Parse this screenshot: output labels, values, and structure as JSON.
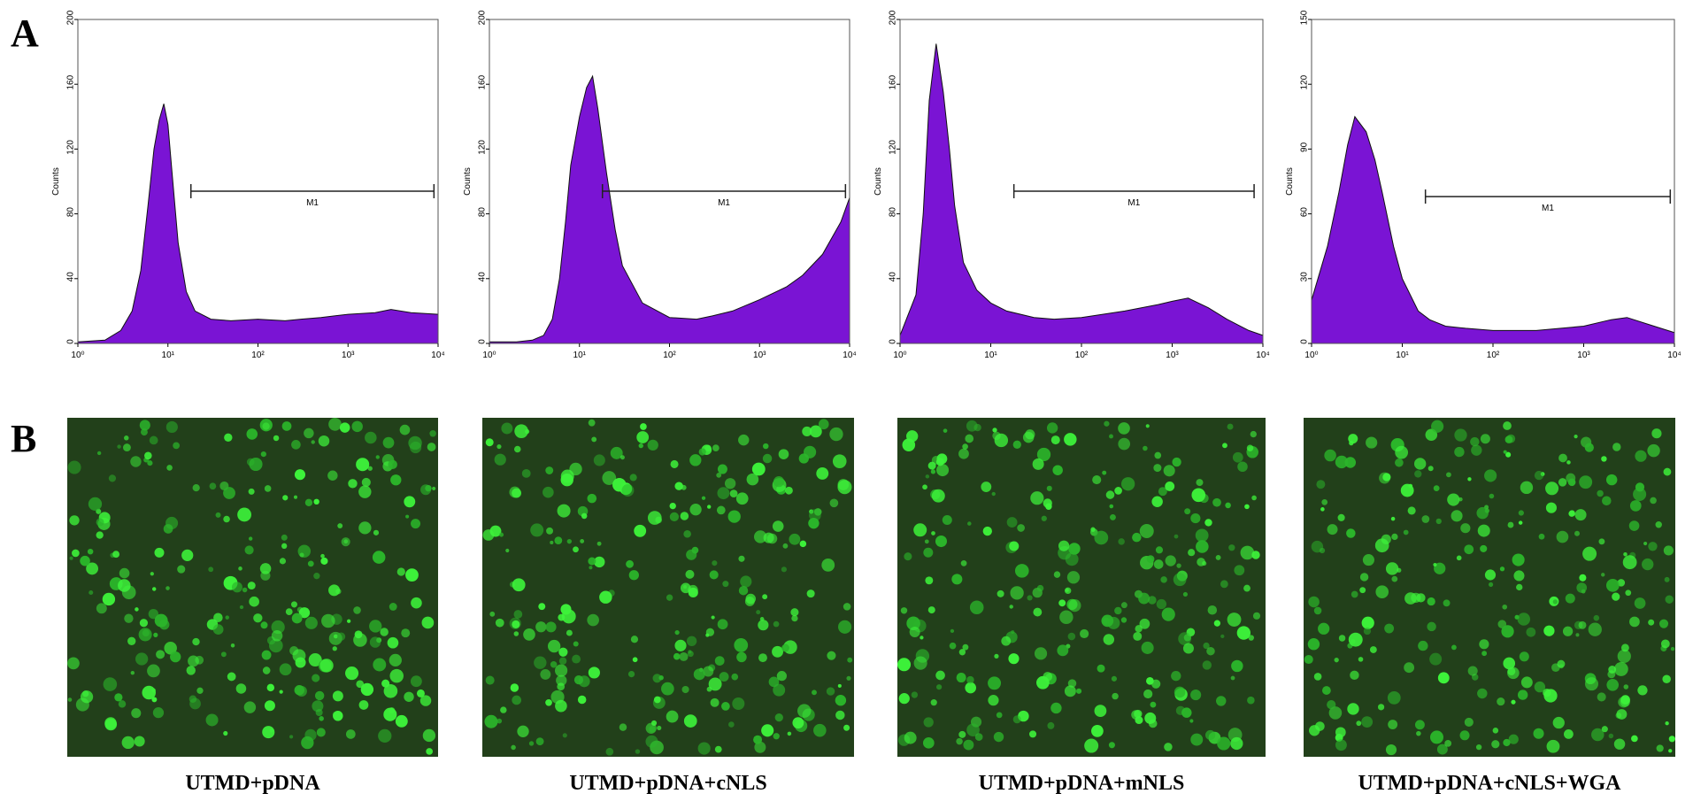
{
  "panel_labels": [
    "A",
    "B"
  ],
  "chart_data": [
    {
      "type": "histogram",
      "ylabel": "Counts",
      "x_scale": "log",
      "color": "#7a14d4",
      "xlim": [
        1,
        10000
      ],
      "xticks": [
        {
          "value": 1,
          "label": "10⁰"
        },
        {
          "value": 10,
          "label": "10¹"
        },
        {
          "value": 100,
          "label": "10²"
        },
        {
          "value": 1000,
          "label": "10³"
        },
        {
          "value": 10000,
          "label": "10⁴"
        }
      ],
      "ylim": [
        0,
        200
      ],
      "yticks": [
        0,
        40,
        80,
        120,
        160,
        200
      ],
      "x": [
        1,
        2,
        3,
        4,
        5,
        6,
        7,
        8,
        9,
        10,
        11,
        13,
        16,
        20,
        30,
        50,
        100,
        200,
        300,
        500,
        1000,
        2000,
        3000,
        5000,
        10000
      ],
      "values": [
        1,
        2,
        8,
        20,
        45,
        85,
        120,
        138,
        148,
        135,
        108,
        62,
        32,
        20,
        15,
        14,
        15,
        14,
        15,
        16,
        18,
        19,
        21,
        19,
        18
      ],
      "gate": {
        "label": "M1",
        "x": [
          18,
          9000
        ],
        "y": 94
      }
    },
    {
      "type": "histogram",
      "ylabel": "Counts",
      "x_scale": "log",
      "color": "#7a14d4",
      "xlim": [
        1,
        10000
      ],
      "xticks": [
        {
          "value": 1,
          "label": "10⁰"
        },
        {
          "value": 10,
          "label": "10¹"
        },
        {
          "value": 100,
          "label": "10²"
        },
        {
          "value": 1000,
          "label": "10³"
        },
        {
          "value": 10000,
          "label": "10⁴"
        }
      ],
      "ylim": [
        0,
        200
      ],
      "yticks": [
        0,
        40,
        80,
        120,
        160,
        200
      ],
      "x": [
        1,
        2,
        3,
        4,
        5,
        6,
        7,
        8,
        10,
        12,
        14,
        16,
        20,
        25,
        30,
        50,
        100,
        200,
        300,
        500,
        1000,
        2000,
        3000,
        5000,
        8000,
        10000
      ],
      "values": [
        1,
        1,
        2,
        5,
        15,
        40,
        75,
        110,
        140,
        158,
        165,
        145,
        105,
        70,
        48,
        25,
        16,
        15,
        17,
        20,
        27,
        35,
        42,
        55,
        75,
        90
      ],
      "gate": {
        "label": "M1",
        "x": [
          18,
          9000
        ],
        "y": 94
      }
    },
    {
      "type": "histogram",
      "ylabel": "Counts",
      "x_scale": "log",
      "color": "#7a14d4",
      "xlim": [
        1,
        10000
      ],
      "xticks": [
        {
          "value": 1,
          "label": "10⁰"
        },
        {
          "value": 10,
          "label": "10¹"
        },
        {
          "value": 100,
          "label": "10²"
        },
        {
          "value": 1000,
          "label": "10³"
        },
        {
          "value": 10000,
          "label": "10⁴"
        }
      ],
      "ylim": [
        0,
        200
      ],
      "yticks": [
        0,
        40,
        80,
        120,
        160,
        200
      ],
      "x": [
        1,
        1.5,
        1.8,
        2.1,
        2.5,
        3,
        3.5,
        4,
        5,
        7,
        10,
        15,
        30,
        50,
        100,
        300,
        700,
        1000,
        1500,
        2500,
        4000,
        7000,
        10000
      ],
      "values": [
        5,
        30,
        80,
        150,
        185,
        155,
        120,
        85,
        50,
        33,
        25,
        20,
        16,
        15,
        16,
        20,
        24,
        26,
        28,
        22,
        15,
        8,
        5
      ],
      "gate": {
        "label": "M1",
        "x": [
          18,
          8000
        ],
        "y": 94
      }
    },
    {
      "type": "histogram",
      "ylabel": "Counts",
      "x_scale": "log",
      "color": "#7a14d4",
      "xlim": [
        1,
        10000
      ],
      "xticks": [
        {
          "value": 1,
          "label": "10⁰"
        },
        {
          "value": 10,
          "label": "10¹"
        },
        {
          "value": 100,
          "label": "10²"
        },
        {
          "value": 1000,
          "label": "10³"
        },
        {
          "value": 10000,
          "label": "10⁴"
        }
      ],
      "ylim": [
        0,
        150
      ],
      "yticks": [
        0,
        30,
        60,
        90,
        120,
        150
      ],
      "x": [
        1,
        1.5,
        2,
        2.5,
        3,
        4,
        5,
        6,
        8,
        10,
        15,
        20,
        30,
        50,
        100,
        300,
        1000,
        2000,
        3000,
        5000,
        10000
      ],
      "values": [
        20,
        45,
        70,
        92,
        105,
        98,
        85,
        70,
        45,
        30,
        15,
        11,
        8,
        7,
        6,
        6,
        8,
        11,
        12,
        9,
        5
      ],
      "gate": {
        "label": "M1",
        "x": [
          18,
          9000
        ],
        "y": 68
      }
    }
  ],
  "images": [
    {
      "caption": "UTMD+pDNA"
    },
    {
      "caption": "UTMD+pDNA+cNLS"
    },
    {
      "caption": "UTMD+pDNA+mNLS"
    },
    {
      "caption": "UTMD+pDNA+cNLS+WGA"
    }
  ]
}
